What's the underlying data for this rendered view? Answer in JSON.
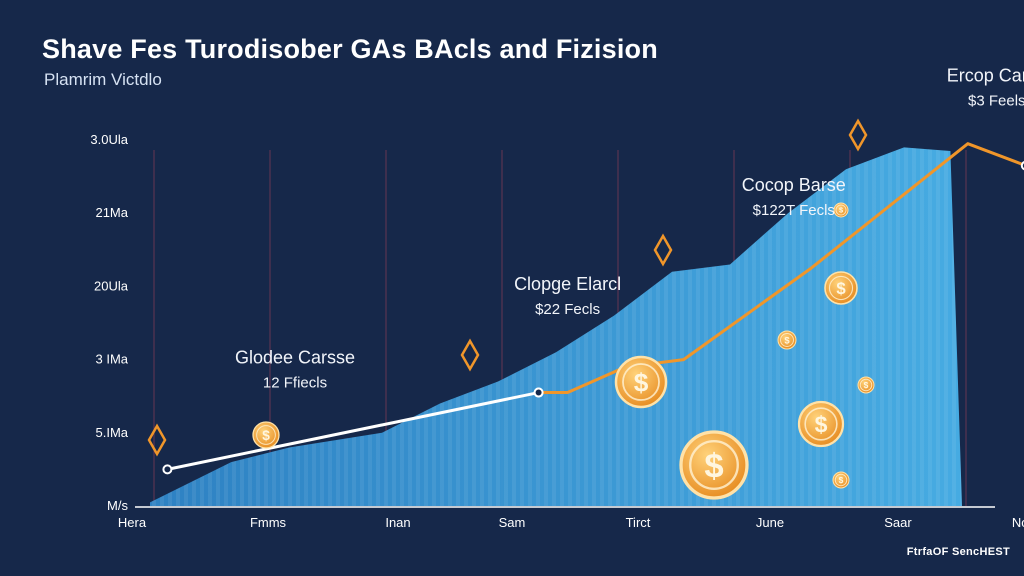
{
  "title": "Shave Fes Turodisober GAs BAcls and Fizision",
  "subtitle": "Plamrim Victdlo",
  "footer": "FtrfaOF SencHEST",
  "colors": {
    "background": "#16284a",
    "area": "#3ea6e0",
    "orange_line": "#f0962a",
    "white_line": "#ffffff",
    "coin": "#f3a436"
  },
  "chart_data": {
    "type": "area",
    "categories": [
      "Hera",
      "Fmms",
      "Inan",
      "Sam",
      "Tirct",
      "June",
      "Saar",
      "Nore"
    ],
    "y_ticks": [
      "M/s",
      "5.IMa",
      "3 IMa",
      "20Ula",
      "21Ma",
      "3.0Ula"
    ],
    "ylim": [
      0,
      5
    ],
    "grid": true,
    "series": [
      {
        "style": "area",
        "points": [
          {
            "x": 0.0,
            "y": 0.05
          },
          {
            "x": 0.7,
            "y": 0.6
          },
          {
            "x": 1.2,
            "y": 0.8
          },
          {
            "x": 2.0,
            "y": 1.0
          },
          {
            "x": 2.5,
            "y": 1.4
          },
          {
            "x": 3.0,
            "y": 1.7
          },
          {
            "x": 3.5,
            "y": 2.1
          },
          {
            "x": 4.0,
            "y": 2.6
          },
          {
            "x": 4.5,
            "y": 3.2
          },
          {
            "x": 5.0,
            "y": 3.3
          },
          {
            "x": 5.5,
            "y": 4.0
          },
          {
            "x": 6.0,
            "y": 4.6
          },
          {
            "x": 6.5,
            "y": 4.9
          },
          {
            "x": 6.9,
            "y": 4.85
          },
          {
            "x": 7.0,
            "y": 0
          }
        ]
      },
      {
        "style": "line-white",
        "points": [
          {
            "x": 0.15,
            "y": 0.5
          },
          {
            "x": 3.35,
            "y": 1.55
          }
        ]
      },
      {
        "style": "line-orange",
        "points": [
          {
            "x": 3.35,
            "y": 1.55
          },
          {
            "x": 3.6,
            "y": 1.55
          },
          {
            "x": 4.1,
            "y": 1.9
          },
          {
            "x": 4.6,
            "y": 2.0
          },
          {
            "x": 5.7,
            "y": 3.25
          },
          {
            "x": 7.05,
            "y": 4.95
          },
          {
            "x": 7.55,
            "y": 4.65
          }
        ]
      }
    ],
    "annotations": [
      {
        "title": "Glodee Carsse",
        "sub": "12 Ffiecls",
        "x": 1.25,
        "y": 1.95
      },
      {
        "title": "Clopge Elarcl",
        "sub": "$22 Fecls",
        "x": 3.6,
        "y": 2.95
      },
      {
        "title": "Cocop Barse",
        "sub": "$122T Fecls",
        "x": 5.55,
        "y": 4.3
      },
      {
        "title": "Ercop Carce",
        "sub": "$3 Feels",
        "x": 7.3,
        "y": 5.8
      }
    ]
  }
}
